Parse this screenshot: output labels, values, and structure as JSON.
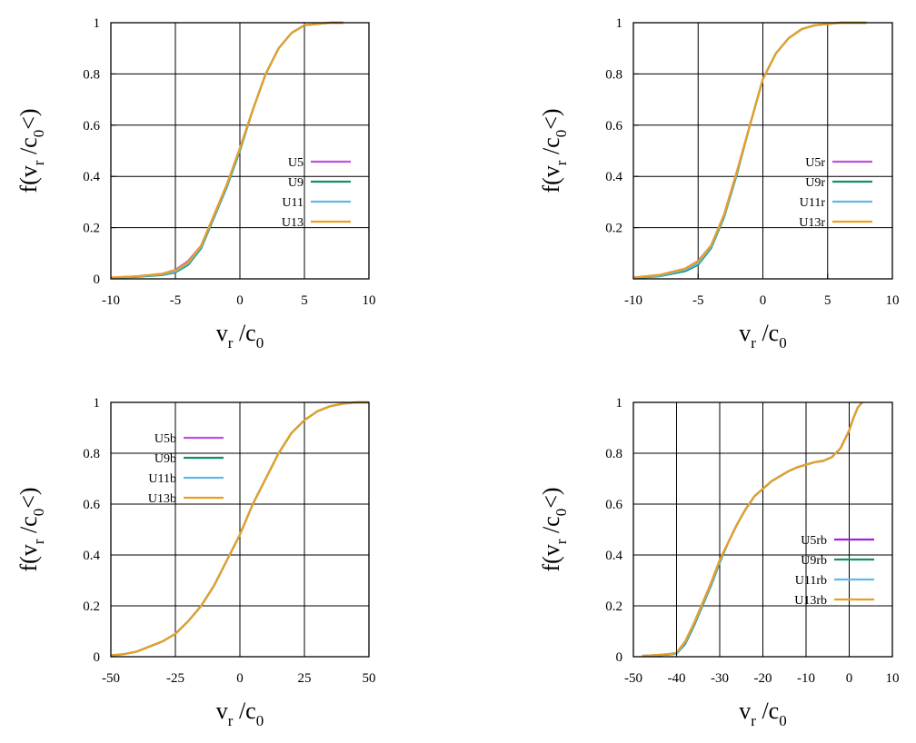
{
  "colors": {
    "grid": "#000000",
    "frame": "#000000",
    "background": "#ffffff"
  },
  "chart_data": [
    {
      "type": "line",
      "xlabel": {
        "main": "v",
        "sub1": "r",
        "mid": " /c",
        "sub2": "0",
        "tail": ""
      },
      "ylabel": {
        "main": "f(v",
        "sub1": "r",
        "mid": " /c",
        "sub2": "0",
        "tail": "<)"
      },
      "xlim": [
        -10,
        10
      ],
      "ylim": [
        0,
        1
      ],
      "xticks": [
        -10,
        -5,
        0,
        5,
        10
      ],
      "xtick_labels": [
        "-10",
        "-5",
        "0",
        "5",
        "10"
      ],
      "yticks": [
        0,
        0.2,
        0.4,
        0.6,
        0.8,
        1
      ],
      "ytick_labels": [
        "0",
        "0.2",
        "0.4",
        "0.6",
        "0.8",
        "1"
      ],
      "grid": true,
      "legend_position": "center-right",
      "series": [
        {
          "name": "U5",
          "color": "#c050e0",
          "x": [
            -10,
            -8,
            -6,
            -5,
            -4,
            -3,
            -2,
            -1,
            0,
            1,
            2,
            3,
            4,
            5,
            6,
            7,
            8
          ],
          "y": [
            0.005,
            0.01,
            0.02,
            0.035,
            0.07,
            0.13,
            0.25,
            0.37,
            0.51,
            0.66,
            0.8,
            0.9,
            0.96,
            0.99,
            0.995,
            1,
            1
          ]
        },
        {
          "name": "U9",
          "color": "#109070",
          "x": [
            -10,
            -8,
            -6,
            -5,
            -4,
            -3,
            -2,
            -1,
            0,
            1,
            2,
            3,
            4,
            5,
            6,
            7,
            8
          ],
          "y": [
            0.004,
            0.008,
            0.015,
            0.025,
            0.055,
            0.12,
            0.24,
            0.36,
            0.5,
            0.66,
            0.8,
            0.9,
            0.96,
            0.99,
            0.995,
            1,
            1
          ]
        },
        {
          "name": "U11",
          "color": "#60b8e8",
          "x": [
            -10,
            -8,
            -6,
            -5,
            -4,
            -3,
            -2,
            -1,
            0,
            1,
            2,
            3,
            4,
            5,
            6,
            7,
            8
          ],
          "y": [
            0.004,
            0.009,
            0.017,
            0.028,
            0.06,
            0.125,
            0.245,
            0.365,
            0.505,
            0.66,
            0.8,
            0.9,
            0.96,
            0.99,
            0.995,
            1,
            1
          ]
        },
        {
          "name": "U13",
          "color": "#e8a020",
          "x": [
            -10,
            -8,
            -6,
            -5,
            -4,
            -3,
            -2,
            -1,
            0,
            1,
            2,
            3,
            4,
            5,
            6,
            7,
            8
          ],
          "y": [
            0.005,
            0.01,
            0.02,
            0.033,
            0.065,
            0.13,
            0.25,
            0.37,
            0.51,
            0.66,
            0.8,
            0.9,
            0.96,
            0.99,
            0.995,
            1,
            1
          ]
        }
      ]
    },
    {
      "type": "line",
      "xlabel": {
        "main": "v",
        "sub1": "r",
        "mid": " /c",
        "sub2": "0",
        "tail": ""
      },
      "ylabel": {
        "main": "f(v",
        "sub1": "r",
        "mid": " /c",
        "sub2": "0",
        "tail": "<)"
      },
      "xlim": [
        -10,
        10
      ],
      "ylim": [
        0,
        1
      ],
      "xticks": [
        -10,
        -5,
        0,
        5,
        10
      ],
      "xtick_labels": [
        "-10",
        "-5",
        "0",
        "5",
        "10"
      ],
      "yticks": [
        0.2,
        0.4,
        0.6,
        0.8,
        1
      ],
      "ytick_labels": [
        "0.2",
        "0.4",
        "0.6",
        "0.8",
        "1"
      ],
      "grid": true,
      "legend_position": "center-right",
      "series": [
        {
          "name": "U5r",
          "color": "#c050e0",
          "x": [
            -10,
            -8,
            -6,
            -5,
            -4,
            -3,
            -2,
            -1,
            0,
            1,
            2,
            3,
            4,
            5,
            6,
            7,
            8
          ],
          "y": [
            0.005,
            0.015,
            0.04,
            0.07,
            0.13,
            0.25,
            0.42,
            0.6,
            0.78,
            0.88,
            0.94,
            0.975,
            0.99,
            0.995,
            1,
            1,
            1
          ]
        },
        {
          "name": "U9r",
          "color": "#109070",
          "x": [
            -10,
            -8,
            -6,
            -5,
            -4,
            -3,
            -2,
            -1,
            0,
            1,
            2,
            3,
            4,
            5,
            6,
            7,
            8
          ],
          "y": [
            0.003,
            0.01,
            0.03,
            0.055,
            0.12,
            0.24,
            0.41,
            0.6,
            0.78,
            0.88,
            0.94,
            0.975,
            0.99,
            0.995,
            1,
            1,
            1
          ]
        },
        {
          "name": "U11r",
          "color": "#60b8e8",
          "x": [
            -10,
            -8,
            -6,
            -5,
            -4,
            -3,
            -2,
            -1,
            0,
            1,
            2,
            3,
            4,
            5,
            6,
            7,
            8
          ],
          "y": [
            0.004,
            0.012,
            0.035,
            0.06,
            0.125,
            0.245,
            0.415,
            0.6,
            0.78,
            0.88,
            0.94,
            0.975,
            0.99,
            0.995,
            1,
            1,
            1
          ]
        },
        {
          "name": "U13r",
          "color": "#e8a020",
          "x": [
            -10,
            -8,
            -6,
            -5,
            -4,
            -3,
            -2,
            -1,
            0,
            1,
            2,
            3,
            4,
            5,
            6,
            7,
            8
          ],
          "y": [
            0.005,
            0.015,
            0.04,
            0.068,
            0.13,
            0.25,
            0.42,
            0.6,
            0.78,
            0.88,
            0.94,
            0.975,
            0.99,
            0.995,
            1,
            1,
            1
          ]
        }
      ]
    },
    {
      "type": "line",
      "xlabel": {
        "main": "v",
        "sub1": "r",
        "mid": " /c",
        "sub2": "0",
        "tail": ""
      },
      "ylabel": {
        "main": "f(v",
        "sub1": "r",
        "mid": " /c",
        "sub2": "0",
        "tail": "<)"
      },
      "xlim": [
        -50,
        50
      ],
      "ylim": [
        0,
        1
      ],
      "xticks": [
        -50,
        -25,
        0,
        25,
        50
      ],
      "xtick_labels": [
        "-50",
        "-25",
        "0",
        "25",
        "50"
      ],
      "yticks": [
        0,
        0.2,
        0.4,
        0.6,
        0.8,
        1
      ],
      "ytick_labels": [
        "0",
        "0.2",
        "0.4",
        "0.6",
        "0.8",
        "1"
      ],
      "grid": true,
      "legend_position": "top-left",
      "series": [
        {
          "name": "U5b",
          "color": "#c050e0",
          "x": [
            -50,
            -45,
            -40,
            -35,
            -30,
            -25,
            -20,
            -15,
            -10,
            -5,
            0,
            5,
            10,
            15,
            20,
            25,
            30,
            35,
            40,
            45,
            50
          ],
          "y": [
            0.005,
            0.01,
            0.02,
            0.04,
            0.06,
            0.09,
            0.14,
            0.2,
            0.28,
            0.38,
            0.48,
            0.6,
            0.7,
            0.8,
            0.88,
            0.93,
            0.965,
            0.985,
            0.995,
            1,
            1
          ]
        },
        {
          "name": "U9b",
          "color": "#109070",
          "x": [
            -50,
            -45,
            -40,
            -35,
            -30,
            -25,
            -20,
            -15,
            -10,
            -5,
            0,
            5,
            10,
            15,
            20,
            25,
            30,
            35,
            40,
            45,
            50
          ],
          "y": [
            0.005,
            0.01,
            0.02,
            0.04,
            0.06,
            0.09,
            0.14,
            0.2,
            0.28,
            0.38,
            0.48,
            0.6,
            0.7,
            0.8,
            0.88,
            0.93,
            0.965,
            0.985,
            0.995,
            1,
            1
          ]
        },
        {
          "name": "U11b",
          "color": "#60b8e8",
          "x": [
            -50,
            -45,
            -40,
            -35,
            -30,
            -25,
            -20,
            -15,
            -10,
            -5,
            0,
            5,
            10,
            15,
            20,
            25,
            30,
            35,
            40,
            45,
            50
          ],
          "y": [
            0.005,
            0.01,
            0.02,
            0.04,
            0.06,
            0.09,
            0.14,
            0.2,
            0.28,
            0.38,
            0.48,
            0.6,
            0.7,
            0.8,
            0.88,
            0.93,
            0.965,
            0.985,
            0.995,
            1,
            1
          ]
        },
        {
          "name": "U13b",
          "color": "#e8a020",
          "x": [
            -50,
            -45,
            -40,
            -35,
            -30,
            -25,
            -20,
            -15,
            -10,
            -5,
            0,
            5,
            10,
            15,
            20,
            25,
            30,
            35,
            40,
            45,
            50
          ],
          "y": [
            0.005,
            0.01,
            0.02,
            0.04,
            0.06,
            0.09,
            0.14,
            0.2,
            0.28,
            0.38,
            0.48,
            0.6,
            0.7,
            0.8,
            0.88,
            0.93,
            0.965,
            0.985,
            0.995,
            1,
            1
          ]
        }
      ]
    },
    {
      "type": "line",
      "xlabel": {
        "main": "v",
        "sub1": "r",
        "mid": " /c",
        "sub2": "0",
        "tail": ""
      },
      "ylabel": {
        "main": "f(v",
        "sub1": "r",
        "mid": " /c",
        "sub2": "0",
        "tail": "<)"
      },
      "xlim": [
        -50,
        10
      ],
      "ylim": [
        0,
        1
      ],
      "xticks": [
        -50,
        -40,
        -30,
        -20,
        -10,
        0,
        10
      ],
      "xtick_labels": [
        "-50",
        "-40",
        "-30",
        "-20",
        "-10",
        "0",
        "10"
      ],
      "yticks": [
        0,
        0.2,
        0.4,
        0.6,
        0.8,
        1
      ],
      "ytick_labels": [
        "0",
        "0.2",
        "0.4",
        "0.6",
        "0.8",
        "1"
      ],
      "grid": true,
      "legend_position": "bottom-right",
      "series": [
        {
          "name": "U5rb",
          "color": "#a020e0",
          "x": [
            -48,
            -45,
            -42,
            -40,
            -38,
            -36,
            -34,
            -32,
            -30,
            -28,
            -26,
            -24,
            -22,
            -20,
            -18,
            -16,
            -14,
            -12,
            -10,
            -8,
            -6,
            -4,
            -2,
            0,
            1,
            2,
            3
          ],
          "y": [
            0.003,
            0.006,
            0.01,
            0.015,
            0.06,
            0.13,
            0.21,
            0.29,
            0.38,
            0.45,
            0.52,
            0.58,
            0.63,
            0.66,
            0.69,
            0.71,
            0.73,
            0.745,
            0.755,
            0.765,
            0.77,
            0.785,
            0.82,
            0.89,
            0.94,
            0.98,
            1
          ]
        },
        {
          "name": "U9rb",
          "color": "#109070",
          "x": [
            -48,
            -45,
            -42,
            -40,
            -38,
            -36,
            -34,
            -32,
            -30,
            -28,
            -26,
            -24,
            -22,
            -20,
            -18,
            -16,
            -14,
            -12,
            -10,
            -8,
            -6,
            -4,
            -2,
            0,
            1,
            2,
            3
          ],
          "y": [
            0.003,
            0.005,
            0.008,
            0.012,
            0.05,
            0.12,
            0.2,
            0.28,
            0.37,
            0.45,
            0.52,
            0.58,
            0.63,
            0.66,
            0.69,
            0.71,
            0.73,
            0.745,
            0.755,
            0.765,
            0.77,
            0.785,
            0.82,
            0.89,
            0.94,
            0.98,
            1
          ]
        },
        {
          "name": "U11rb",
          "color": "#60b8e8",
          "x": [
            -48,
            -45,
            -42,
            -40,
            -38,
            -36,
            -34,
            -32,
            -30,
            -28,
            -26,
            -24,
            -22,
            -20,
            -18,
            -16,
            -14,
            -12,
            -10,
            -8,
            -6,
            -4,
            -2,
            0,
            1,
            2,
            3
          ],
          "y": [
            0.003,
            0.006,
            0.009,
            0.013,
            0.055,
            0.125,
            0.205,
            0.285,
            0.375,
            0.45,
            0.52,
            0.58,
            0.63,
            0.66,
            0.69,
            0.71,
            0.73,
            0.745,
            0.755,
            0.765,
            0.77,
            0.785,
            0.82,
            0.89,
            0.94,
            0.98,
            1
          ]
        },
        {
          "name": "U13rb",
          "color": "#e8a020",
          "x": [
            -48,
            -45,
            -42,
            -40,
            -38,
            -36,
            -34,
            -32,
            -30,
            -28,
            -26,
            -24,
            -22,
            -20,
            -18,
            -16,
            -14,
            -12,
            -10,
            -8,
            -6,
            -4,
            -2,
            0,
            1,
            2,
            3
          ],
          "y": [
            0.003,
            0.006,
            0.01,
            0.015,
            0.06,
            0.13,
            0.21,
            0.29,
            0.38,
            0.45,
            0.52,
            0.58,
            0.63,
            0.66,
            0.69,
            0.71,
            0.73,
            0.745,
            0.755,
            0.765,
            0.77,
            0.785,
            0.82,
            0.89,
            0.94,
            0.98,
            1
          ]
        }
      ]
    }
  ]
}
